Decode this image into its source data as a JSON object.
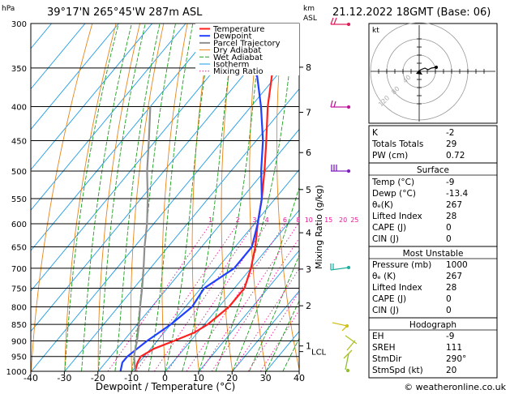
{
  "header": {
    "hpa_label": "hPa",
    "location": "39°17'N  265°45'W  287m  ASL",
    "km_label": "km",
    "asl_label": "ASL",
    "datetime": "21.12.2022  18GMT  (Base: 06)"
  },
  "chart_data": {
    "type": "line",
    "xlabel": "Dewpoint / Temperature (°C)",
    "ylabel": "Mixing Ratio (g/kg)",
    "x_ticks": [
      -40,
      -30,
      -20,
      -10,
      0,
      10,
      20,
      30,
      40
    ],
    "pressure_levels": [
      300,
      350,
      400,
      450,
      500,
      550,
      600,
      650,
      700,
      750,
      800,
      850,
      900,
      950,
      1000
    ],
    "xlim": [
      -40,
      40
    ],
    "ylim": [
      1000,
      300
    ],
    "km_labels": [
      {
        "p": 349,
        "label": "8"
      },
      {
        "p": 408,
        "label": "7"
      },
      {
        "p": 469,
        "label": "6"
      },
      {
        "p": 533,
        "label": "5"
      },
      {
        "p": 619,
        "label": "4"
      },
      {
        "p": 702,
        "label": "3"
      },
      {
        "p": 797,
        "label": "2"
      },
      {
        "p": 916,
        "label": "1"
      }
    ],
    "lcl": {
      "p": 934,
      "label": "LCL"
    },
    "mixing_ratio_labels": [
      "1",
      "2",
      "3",
      "4",
      "6",
      "8",
      "10",
      "15",
      "20",
      "25"
    ],
    "legend": [
      "Temperature",
      "Dewpoint",
      "Parcel Trajectory",
      "Dry Adiabat",
      "Wet Adiabat",
      "Isotherm",
      "Mixing Ratio"
    ],
    "series": [
      {
        "name": "Temperature",
        "color": "#ff2020",
        "points": [
          [
            1000,
            -9
          ],
          [
            970,
            -10.5
          ],
          [
            950,
            -11
          ],
          [
            925,
            -9
          ],
          [
            900,
            -5
          ],
          [
            875,
            -1
          ],
          [
            850,
            1
          ],
          [
            800,
            3
          ],
          [
            750,
            3
          ],
          [
            700,
            0
          ],
          [
            650,
            -4
          ],
          [
            600,
            -9
          ],
          [
            550,
            -14
          ],
          [
            500,
            -20
          ],
          [
            450,
            -27
          ],
          [
            400,
            -35
          ],
          [
            350,
            -43
          ],
          [
            300,
            -51
          ]
        ]
      },
      {
        "name": "Dewpoint",
        "color": "#2040ff",
        "points": [
          [
            1000,
            -13.4
          ],
          [
            970,
            -15
          ],
          [
            950,
            -15
          ],
          [
            925,
            -14
          ],
          [
            900,
            -13
          ],
          [
            850,
            -10
          ],
          [
            800,
            -8
          ],
          [
            750,
            -9
          ],
          [
            700,
            -5
          ],
          [
            650,
            -5
          ],
          [
            600,
            -9
          ],
          [
            550,
            -14
          ],
          [
            500,
            -21
          ],
          [
            450,
            -28
          ],
          [
            400,
            -37
          ],
          [
            350,
            -48
          ],
          [
            300,
            -59
          ]
        ]
      },
      {
        "name": "Parcel Trajectory",
        "color": "#909090",
        "points": [
          [
            1000,
            -9
          ],
          [
            950,
            -13
          ],
          [
            934,
            -14
          ],
          [
            900,
            -16
          ],
          [
            850,
            -19.5
          ],
          [
            800,
            -23.5
          ],
          [
            750,
            -27.5
          ],
          [
            700,
            -32
          ],
          [
            650,
            -37
          ],
          [
            600,
            -42
          ],
          [
            550,
            -48
          ],
          [
            500,
            -55
          ],
          [
            450,
            -62
          ],
          [
            400,
            -70
          ]
        ]
      }
    ]
  },
  "colors": {
    "isotherm": "#1e9be6",
    "dry_adiabat": "#e8861a",
    "wet_adiabat": "#1ea01e",
    "mixing_ratio": "#e8189a",
    "temperature": "#ff2020",
    "dewpoint": "#2040ff",
    "parcel": "#909090"
  },
  "hodograph": {
    "kt_label": "kt",
    "ring_labels": [
      "40",
      "80",
      "120"
    ]
  },
  "table1": {
    "rows": [
      {
        "label": "K",
        "value": "-2"
      },
      {
        "label": "Totals Totals",
        "value": "29"
      },
      {
        "label": "PW (cm)",
        "value": "0.72"
      }
    ]
  },
  "surface": {
    "title": "Surface",
    "rows": [
      {
        "label": "Temp (°C)",
        "value": "-9"
      },
      {
        "label": "Dewp (°C)",
        "value": "-13.4"
      },
      {
        "label": "θₑ(K)",
        "value": "267"
      },
      {
        "label": "Lifted Index",
        "value": "28"
      },
      {
        "label": "CAPE (J)",
        "value": "0"
      },
      {
        "label": "CIN (J)",
        "value": "0"
      }
    ]
  },
  "most_unstable": {
    "title": "Most Unstable",
    "rows": [
      {
        "label": "Pressure (mb)",
        "value": "1000"
      },
      {
        "label": "θₑ (K)",
        "value": "267"
      },
      {
        "label": "Lifted Index",
        "value": "28"
      },
      {
        "label": "CAPE (J)",
        "value": "0"
      },
      {
        "label": "CIN (J)",
        "value": "0"
      }
    ]
  },
  "hodo_table": {
    "title": "Hodograph",
    "rows": [
      {
        "label": "EH",
        "value": "-9"
      },
      {
        "label": "SREH",
        "value": "111"
      },
      {
        "label": "StmDir",
        "value": "290°"
      },
      {
        "label": "StmSpd (kt)",
        "value": "20"
      }
    ]
  },
  "copyright": "© weatheronline.co.uk"
}
